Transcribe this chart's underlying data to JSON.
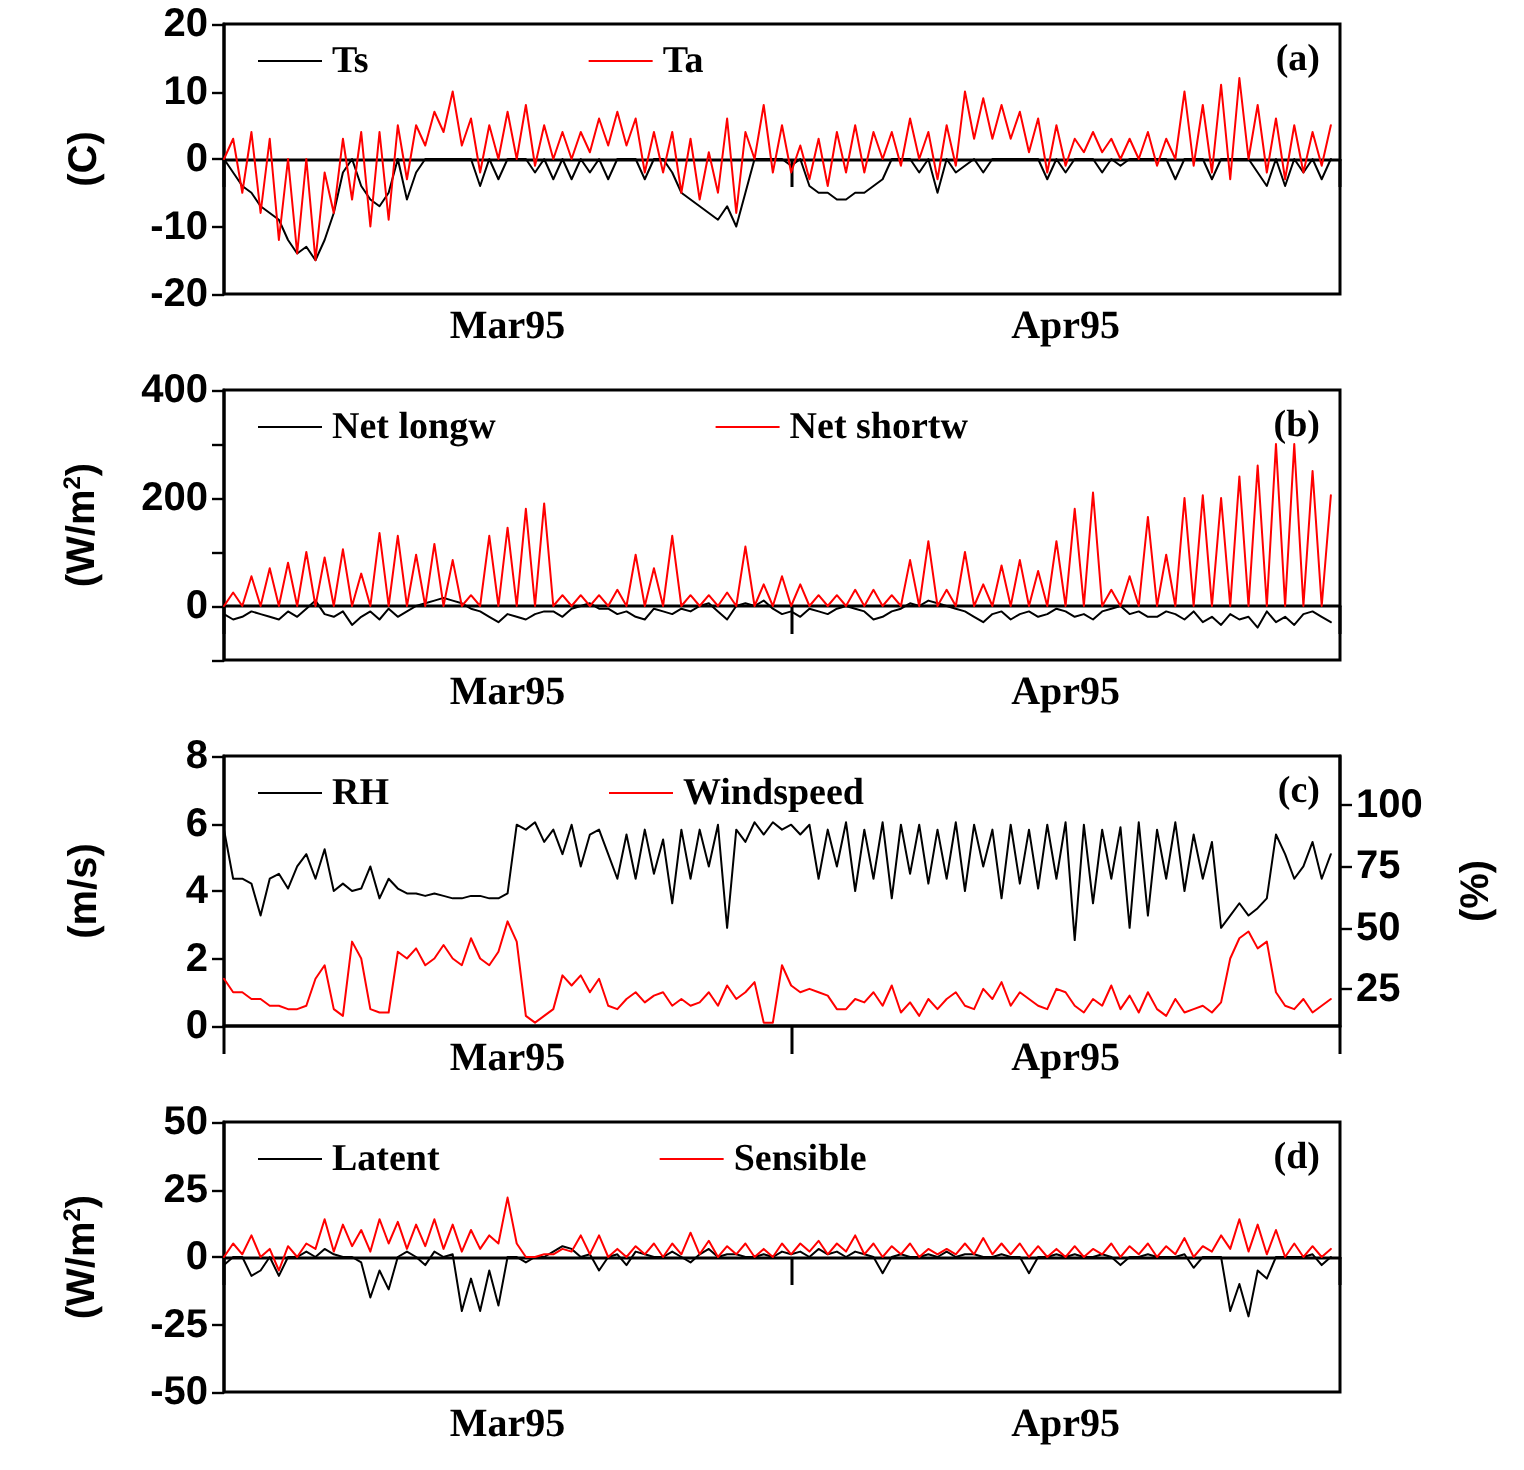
{
  "chart_data": [
    {
      "type": "line",
      "ylabel": "(C)",
      "annotations": [
        "(a)"
      ],
      "legend": "top left",
      "xlim": [
        "1995-03-01",
        "1995-05-01"
      ],
      "xticks": [
        {
          "value": "1995-03-01",
          "label": null
        },
        {
          "value": "1995-03-16T12:00",
          "label": "Mar95"
        },
        {
          "value": "1995-04-01",
          "label": null
        },
        {
          "value": "1995-04-16",
          "label": "Apr95"
        },
        {
          "value": "1995-05-01",
          "label": null
        }
      ],
      "ylim": [
        -20,
        20
      ],
      "yticks": [
        -20,
        -10,
        0,
        10,
        20
      ],
      "x": [
        "1995-03-01T00:00",
        "1995-03-01T12:00",
        "1995-03-02T00:00",
        "1995-03-02T12:00",
        "1995-03-03T00:00",
        "1995-03-03T12:00",
        "1995-03-04T00:00",
        "1995-03-04T12:00",
        "1995-03-05T00:00",
        "1995-03-05T12:00",
        "1995-03-06T00:00",
        "1995-03-06T12:00",
        "1995-03-07T00:00",
        "1995-03-07T12:00",
        "1995-03-08T00:00",
        "1995-03-08T12:00",
        "1995-03-09T00:00",
        "1995-03-09T12:00",
        "1995-03-10T00:00",
        "1995-03-10T12:00",
        "1995-03-11T00:00",
        "1995-03-11T12:00",
        "1995-03-12T00:00",
        "1995-03-12T12:00",
        "1995-03-13T00:00",
        "1995-03-13T12:00",
        "1995-03-14T00:00",
        "1995-03-14T12:00",
        "1995-03-15T00:00",
        "1995-03-15T12:00",
        "1995-03-16T00:00",
        "1995-03-16T12:00",
        "1995-03-17T00:00",
        "1995-03-17T12:00",
        "1995-03-18T00:00",
        "1995-03-18T12:00",
        "1995-03-19T00:00",
        "1995-03-19T12:00",
        "1995-03-20T00:00",
        "1995-03-20T12:00",
        "1995-03-21T00:00",
        "1995-03-21T12:00",
        "1995-03-22T00:00",
        "1995-03-22T12:00",
        "1995-03-23T00:00",
        "1995-03-23T12:00",
        "1995-03-24T00:00",
        "1995-03-24T12:00",
        "1995-03-25T00:00",
        "1995-03-25T12:00",
        "1995-03-26T00:00",
        "1995-03-26T12:00",
        "1995-03-27T00:00",
        "1995-03-27T12:00",
        "1995-03-28T00:00",
        "1995-03-28T12:00",
        "1995-03-29T00:00",
        "1995-03-29T12:00",
        "1995-03-30T00:00",
        "1995-03-30T12:00",
        "1995-03-31T00:00",
        "1995-03-31T12:00",
        "1995-04-01T00:00",
        "1995-04-01T12:00",
        "1995-04-02T00:00",
        "1995-04-02T12:00",
        "1995-04-03T00:00",
        "1995-04-03T12:00",
        "1995-04-04T00:00",
        "1995-04-04T12:00",
        "1995-04-05T00:00",
        "1995-04-05T12:00",
        "1995-04-06T00:00",
        "1995-04-06T12:00",
        "1995-04-07T00:00",
        "1995-04-07T12:00",
        "1995-04-08T00:00",
        "1995-04-08T12:00",
        "1995-04-09T00:00",
        "1995-04-09T12:00",
        "1995-04-10T00:00",
        "1995-04-10T12:00",
        "1995-04-11T00:00",
        "1995-04-11T12:00",
        "1995-04-12T00:00",
        "1995-04-12T12:00",
        "1995-04-13T00:00",
        "1995-04-13T12:00",
        "1995-04-14T00:00",
        "1995-04-14T12:00",
        "1995-04-15T00:00",
        "1995-04-15T12:00",
        "1995-04-16T00:00",
        "1995-04-16T12:00",
        "1995-04-17T00:00",
        "1995-04-17T12:00",
        "1995-04-18T00:00",
        "1995-04-18T12:00",
        "1995-04-19T00:00",
        "1995-04-19T12:00",
        "1995-04-20T00:00",
        "1995-04-20T12:00",
        "1995-04-21T00:00",
        "1995-04-21T12:00",
        "1995-04-22T00:00",
        "1995-04-22T12:00",
        "1995-04-23T00:00",
        "1995-04-23T12:00",
        "1995-04-24T00:00",
        "1995-04-24T12:00",
        "1995-04-25T00:00",
        "1995-04-25T12:00",
        "1995-04-26T00:00",
        "1995-04-26T12:00",
        "1995-04-27T00:00",
        "1995-04-27T12:00",
        "1995-04-28T00:00",
        "1995-04-28T12:00",
        "1995-04-29T00:00",
        "1995-04-29T12:00",
        "1995-04-30T00:00",
        "1995-04-30T12:00"
      ],
      "series": [
        {
          "name": "Ts",
          "color": "#000000",
          "values": [
            0,
            -2,
            -4,
            -5,
            -7,
            -8,
            -9,
            -12,
            -14,
            -13,
            -15,
            -12,
            -8,
            -2,
            0,
            -4,
            -6,
            -7,
            -5,
            0,
            -6,
            -2,
            0,
            0,
            0,
            0,
            0,
            0,
            -4,
            0,
            -3,
            0,
            0,
            0,
            -2,
            0,
            -3,
            0,
            -3,
            0,
            -2,
            0,
            -3,
            0,
            0,
            0,
            -3,
            0,
            0,
            -2,
            -5,
            -6,
            -7,
            -8,
            -9,
            -7,
            -10,
            -5,
            0,
            0,
            0,
            0,
            -1,
            0,
            -4,
            -5,
            -5,
            -6,
            -6,
            -5,
            -5,
            -4,
            -3,
            0,
            0,
            0,
            -2,
            0,
            -5,
            0,
            -2,
            -1,
            0,
            -2,
            0,
            0,
            0,
            0,
            0,
            0,
            -3,
            0,
            -2,
            0,
            0,
            0,
            -2,
            0,
            -1,
            0,
            0,
            0,
            0,
            0,
            -3,
            0,
            0,
            0,
            -3,
            0,
            0,
            0,
            0,
            -2,
            -4,
            0,
            -4,
            0,
            -2,
            0,
            -3,
            0
          ]
        },
        {
          "name": "Ta",
          "color": "#ff0000",
          "values": [
            0,
            3,
            -5,
            4,
            -8,
            3,
            -12,
            0,
            -14,
            0,
            -15,
            -2,
            -8,
            3,
            -6,
            4,
            -10,
            4,
            -9,
            5,
            -3,
            5,
            2,
            7,
            4,
            10,
            2,
            6,
            -2,
            5,
            0,
            7,
            0,
            8,
            -1,
            5,
            0,
            4,
            0,
            4,
            1,
            6,
            2,
            7,
            2,
            6,
            -2,
            4,
            -2,
            4,
            -5,
            3,
            -6,
            1,
            -5,
            6,
            -8,
            4,
            0,
            8,
            -2,
            5,
            -2,
            2,
            -3,
            3,
            -4,
            4,
            -2,
            5,
            -2,
            4,
            0,
            4,
            -1,
            6,
            0,
            4,
            -3,
            5,
            -1,
            10,
            3,
            9,
            3,
            8,
            3,
            7,
            1,
            6,
            -2,
            5,
            -1,
            3,
            1,
            4,
            1,
            3,
            0,
            3,
            0,
            4,
            -1,
            3,
            0,
            10,
            -1,
            8,
            -2,
            11,
            -3,
            12,
            0,
            8,
            -2,
            6,
            -3,
            5,
            -2,
            4,
            -1,
            5
          ]
        }
      ]
    },
    {
      "type": "line",
      "ylabel": "(W/m$^{2}$)",
      "annotations": [
        "(b)"
      ],
      "legend": "top left",
      "xlim": [
        "1995-03-01",
        "1995-05-01"
      ],
      "xticks": [
        {
          "value": "1995-03-01",
          "label": null
        },
        {
          "value": "1995-03-16T12:00",
          "label": "Mar95"
        },
        {
          "value": "1995-04-01",
          "label": null
        },
        {
          "value": "1995-04-16",
          "label": "Apr95"
        },
        {
          "value": "1995-05-01",
          "label": null
        }
      ],
      "ylim": [
        -100,
        400
      ],
      "yticks": [
        {
          "value": -100,
          "label": null
        },
        0,
        {
          "value": 100,
          "label": null
        },
        200,
        {
          "value": 300,
          "label": null
        },
        400
      ],
      "x": [
        "1995-03-01T00:00",
        "1995-03-01T12:00",
        "1995-03-02T00:00",
        "1995-03-02T12:00",
        "1995-03-03T00:00",
        "1995-03-03T12:00",
        "1995-03-04T00:00",
        "1995-03-04T12:00",
        "1995-03-05T00:00",
        "1995-03-05T12:00",
        "1995-03-06T00:00",
        "1995-03-06T12:00",
        "1995-03-07T00:00",
        "1995-03-07T12:00",
        "1995-03-08T00:00",
        "1995-03-08T12:00",
        "1995-03-09T00:00",
        "1995-03-09T12:00",
        "1995-03-10T00:00",
        "1995-03-10T12:00",
        "1995-03-11T00:00",
        "1995-03-11T12:00",
        "1995-03-12T00:00",
        "1995-03-12T12:00",
        "1995-03-13T00:00",
        "1995-03-13T12:00",
        "1995-03-14T00:00",
        "1995-03-14T12:00",
        "1995-03-15T00:00",
        "1995-03-15T12:00",
        "1995-03-16T00:00",
        "1995-03-16T12:00",
        "1995-03-17T00:00",
        "1995-03-17T12:00",
        "1995-03-18T00:00",
        "1995-03-18T12:00",
        "1995-03-19T00:00",
        "1995-03-19T12:00",
        "1995-03-20T00:00",
        "1995-03-20T12:00",
        "1995-03-21T00:00",
        "1995-03-21T12:00",
        "1995-03-22T00:00",
        "1995-03-22T12:00",
        "1995-03-23T00:00",
        "1995-03-23T12:00",
        "1995-03-24T00:00",
        "1995-03-24T12:00",
        "1995-03-25T00:00",
        "1995-03-25T12:00",
        "1995-03-26T00:00",
        "1995-03-26T12:00",
        "1995-03-27T00:00",
        "1995-03-27T12:00",
        "1995-03-28T00:00",
        "1995-03-28T12:00",
        "1995-03-29T00:00",
        "1995-03-29T12:00",
        "1995-03-30T00:00",
        "1995-03-30T12:00",
        "1995-03-31T00:00",
        "1995-03-31T12:00",
        "1995-04-01T00:00",
        "1995-04-01T12:00",
        "1995-04-02T00:00",
        "1995-04-02T12:00",
        "1995-04-03T00:00",
        "1995-04-03T12:00",
        "1995-04-04T00:00",
        "1995-04-04T12:00",
        "1995-04-05T00:00",
        "1995-04-05T12:00",
        "1995-04-06T00:00",
        "1995-04-06T12:00",
        "1995-04-07T00:00",
        "1995-04-07T12:00",
        "1995-04-08T00:00",
        "1995-04-08T12:00",
        "1995-04-09T00:00",
        "1995-04-09T12:00",
        "1995-04-10T00:00",
        "1995-04-10T12:00",
        "1995-04-11T00:00",
        "1995-04-11T12:00",
        "1995-04-12T00:00",
        "1995-04-12T12:00",
        "1995-04-13T00:00",
        "1995-04-13T12:00",
        "1995-04-14T00:00",
        "1995-04-14T12:00",
        "1995-04-15T00:00",
        "1995-04-15T12:00",
        "1995-04-16T00:00",
        "1995-04-16T12:00",
        "1995-04-17T00:00",
        "1995-04-17T12:00",
        "1995-04-18T00:00",
        "1995-04-18T12:00",
        "1995-04-19T00:00",
        "1995-04-19T12:00",
        "1995-04-20T00:00",
        "1995-04-20T12:00",
        "1995-04-21T00:00",
        "1995-04-21T12:00",
        "1995-04-22T00:00",
        "1995-04-22T12:00",
        "1995-04-23T00:00",
        "1995-04-23T12:00",
        "1995-04-24T00:00",
        "1995-04-24T12:00",
        "1995-04-25T00:00",
        "1995-04-25T12:00",
        "1995-04-26T00:00",
        "1995-04-26T12:00",
        "1995-04-27T00:00",
        "1995-04-27T12:00",
        "1995-04-28T00:00",
        "1995-04-28T12:00",
        "1995-04-29T00:00",
        "1995-04-29T12:00",
        "1995-04-30T00:00",
        "1995-04-30T12:00"
      ],
      "series": [
        {
          "name": "Net longw",
          "color": "#000000",
          "values": [
            -15,
            -25,
            -20,
            -10,
            -15,
            -20,
            -25,
            -10,
            -20,
            -5,
            10,
            -15,
            -20,
            -10,
            -35,
            -20,
            -10,
            -25,
            -5,
            -20,
            -10,
            0,
            5,
            10,
            15,
            10,
            5,
            -5,
            -10,
            -20,
            -30,
            -15,
            -20,
            -25,
            -15,
            -10,
            -10,
            -20,
            -5,
            0,
            5,
            -5,
            -5,
            -15,
            -10,
            -20,
            -25,
            -5,
            -10,
            -15,
            -5,
            -10,
            0,
            5,
            -10,
            -25,
            0,
            5,
            0,
            10,
            -5,
            -15,
            -10,
            -20,
            -5,
            -10,
            -15,
            -5,
            0,
            -5,
            -10,
            -25,
            -20,
            -10,
            -5,
            5,
            0,
            10,
            5,
            0,
            -5,
            -10,
            -20,
            -30,
            -15,
            -10,
            -25,
            -15,
            -10,
            -20,
            -15,
            -5,
            -10,
            -20,
            -15,
            -25,
            -10,
            -5,
            0,
            -15,
            -10,
            -20,
            -20,
            -10,
            -15,
            -25,
            -10,
            -30,
            -20,
            -35,
            -15,
            -25,
            -20,
            -40,
            -10,
            -30,
            -20,
            -35,
            -15,
            -10,
            -20,
            -30
          ]
        },
        {
          "name": "Net shortw",
          "color": "#ff0000",
          "values": [
            0,
            25,
            0,
            55,
            0,
            70,
            0,
            80,
            0,
            100,
            0,
            90,
            0,
            105,
            0,
            60,
            0,
            135,
            0,
            130,
            0,
            95,
            0,
            115,
            0,
            85,
            0,
            20,
            0,
            130,
            0,
            145,
            0,
            180,
            0,
            190,
            0,
            20,
            0,
            20,
            0,
            20,
            0,
            30,
            0,
            95,
            0,
            70,
            0,
            130,
            0,
            20,
            0,
            20,
            0,
            25,
            0,
            110,
            0,
            40,
            0,
            55,
            0,
            40,
            0,
            20,
            0,
            20,
            0,
            30,
            0,
            30,
            0,
            20,
            0,
            85,
            0,
            120,
            0,
            30,
            0,
            100,
            0,
            40,
            0,
            75,
            0,
            85,
            0,
            65,
            0,
            120,
            0,
            180,
            0,
            210,
            0,
            30,
            0,
            55,
            0,
            165,
            0,
            95,
            0,
            200,
            0,
            205,
            0,
            200,
            0,
            240,
            0,
            260,
            0,
            300,
            0,
            300,
            0,
            250,
            0,
            205
          ]
        }
      ]
    },
    {
      "type": "line",
      "ylabel": "(m/s)",
      "y2label": "(%)",
      "annotations": [
        "(c)"
      ],
      "legend": "top left",
      "xlim": [
        "1995-03-01",
        "1995-05-01"
      ],
      "xticks": [
        {
          "value": "1995-03-01",
          "label": null
        },
        {
          "value": "1995-03-16T12:00",
          "label": "Mar95"
        },
        {
          "value": "1995-04-01",
          "label": null
        },
        {
          "value": "1995-04-16",
          "label": "Apr95"
        },
        {
          "value": "1995-05-01",
          "label": null
        }
      ],
      "ylim": [
        0,
        8
      ],
      "yticks": [
        0,
        2,
        4,
        6,
        8
      ],
      "y2lim": [
        10,
        120
      ],
      "y2ticks": [
        25,
        50,
        75,
        100
      ],
      "x": [
        "1995-03-01T00:00",
        "1995-03-01T12:00",
        "1995-03-02T00:00",
        "1995-03-02T12:00",
        "1995-03-03T00:00",
        "1995-03-03T12:00",
        "1995-03-04T00:00",
        "1995-03-04T12:00",
        "1995-03-05T00:00",
        "1995-03-05T12:00",
        "1995-03-06T00:00",
        "1995-03-06T12:00",
        "1995-03-07T00:00",
        "1995-03-07T12:00",
        "1995-03-08T00:00",
        "1995-03-08T12:00",
        "1995-03-09T00:00",
        "1995-03-09T12:00",
        "1995-03-10T00:00",
        "1995-03-10T12:00",
        "1995-03-11T00:00",
        "1995-03-11T12:00",
        "1995-03-12T00:00",
        "1995-03-12T12:00",
        "1995-03-13T00:00",
        "1995-03-13T12:00",
        "1995-03-14T00:00",
        "1995-03-14T12:00",
        "1995-03-15T00:00",
        "1995-03-15T12:00",
        "1995-03-16T00:00",
        "1995-03-16T12:00",
        "1995-03-17T00:00",
        "1995-03-17T12:00",
        "1995-03-18T00:00",
        "1995-03-18T12:00",
        "1995-03-19T00:00",
        "1995-03-19T12:00",
        "1995-03-20T00:00",
        "1995-03-20T12:00",
        "1995-03-21T00:00",
        "1995-03-21T12:00",
        "1995-03-22T00:00",
        "1995-03-22T12:00",
        "1995-03-23T00:00",
        "1995-03-23T12:00",
        "1995-03-24T00:00",
        "1995-03-24T12:00",
        "1995-03-25T00:00",
        "1995-03-25T12:00",
        "1995-03-26T00:00",
        "1995-03-26T12:00",
        "1995-03-27T00:00",
        "1995-03-27T12:00",
        "1995-03-28T00:00",
        "1995-03-28T12:00",
        "1995-03-29T00:00",
        "1995-03-29T12:00",
        "1995-03-30T00:00",
        "1995-03-30T12:00",
        "1995-03-31T00:00",
        "1995-03-31T12:00",
        "1995-04-01T00:00",
        "1995-04-01T12:00",
        "1995-04-02T00:00",
        "1995-04-02T12:00",
        "1995-04-03T00:00",
        "1995-04-03T12:00",
        "1995-04-04T00:00",
        "1995-04-04T12:00",
        "1995-04-05T00:00",
        "1995-04-05T12:00",
        "1995-04-06T00:00",
        "1995-04-06T12:00",
        "1995-04-07T00:00",
        "1995-04-07T12:00",
        "1995-04-08T00:00",
        "1995-04-08T12:00",
        "1995-04-09T00:00",
        "1995-04-09T12:00",
        "1995-04-10T00:00",
        "1995-04-10T12:00",
        "1995-04-11T00:00",
        "1995-04-11T12:00",
        "1995-04-12T00:00",
        "1995-04-12T12:00",
        "1995-04-13T00:00",
        "1995-04-13T12:00",
        "1995-04-14T00:00",
        "1995-04-14T12:00",
        "1995-04-15T00:00",
        "1995-04-15T12:00",
        "1995-04-16T00:00",
        "1995-04-16T12:00",
        "1995-04-17T00:00",
        "1995-04-17T12:00",
        "1995-04-18T00:00",
        "1995-04-18T12:00",
        "1995-04-19T00:00",
        "1995-04-19T12:00",
        "1995-04-20T00:00",
        "1995-04-20T12:00",
        "1995-04-21T00:00",
        "1995-04-21T12:00",
        "1995-04-22T00:00",
        "1995-04-22T12:00",
        "1995-04-23T00:00",
        "1995-04-23T12:00",
        "1995-04-24T00:00",
        "1995-04-24T12:00",
        "1995-04-25T00:00",
        "1995-04-25T12:00",
        "1995-04-26T00:00",
        "1995-04-26T12:00",
        "1995-04-27T00:00",
        "1995-04-27T12:00",
        "1995-04-28T00:00",
        "1995-04-28T12:00",
        "1995-04-29T00:00",
        "1995-04-29T12:00",
        "1995-04-30T00:00",
        "1995-04-30T12:00"
      ],
      "series": [
        {
          "name": "RH",
          "color": "#000000",
          "axis": "y2",
          "values": [
            90,
            70,
            70,
            68,
            55,
            70,
            72,
            66,
            75,
            80,
            70,
            82,
            65,
            68,
            65,
            66,
            75,
            62,
            70,
            66,
            64,
            64,
            63,
            64,
            63,
            62,
            62,
            63,
            63,
            62,
            62,
            64,
            92,
            90,
            93,
            85,
            90,
            80,
            92,
            75,
            88,
            90,
            80,
            70,
            88,
            70,
            90,
            72,
            86,
            60,
            90,
            70,
            90,
            75,
            92,
            50,
            90,
            85,
            93,
            88,
            93,
            90,
            92,
            88,
            92,
            70,
            90,
            75,
            93,
            65,
            90,
            70,
            93,
            62,
            92,
            72,
            92,
            68,
            90,
            70,
            93,
            65,
            92,
            75,
            90,
            62,
            92,
            68,
            90,
            66,
            92,
            70,
            93,
            45,
            92,
            60,
            90,
            70,
            91,
            50,
            93,
            55,
            90,
            70,
            93,
            65,
            88,
            70,
            85,
            50,
            55,
            60,
            55,
            58,
            62,
            88,
            80,
            70,
            75,
            85,
            70,
            80
          ]
        },
        {
          "name": "Windspeed",
          "color": "#ff0000",
          "values": [
            1.4,
            1.0,
            1.0,
            0.8,
            0.8,
            0.6,
            0.6,
            0.5,
            0.5,
            0.6,
            1.4,
            1.8,
            0.5,
            0.3,
            2.5,
            2.0,
            0.5,
            0.4,
            0.4,
            2.2,
            2.0,
            2.3,
            1.8,
            2.0,
            2.4,
            2.0,
            1.8,
            2.6,
            2.0,
            1.8,
            2.2,
            3.1,
            2.5,
            0.3,
            0.1,
            0.3,
            0.5,
            1.5,
            1.2,
            1.5,
            1.0,
            1.4,
            0.6,
            0.5,
            0.8,
            1.0,
            0.7,
            0.9,
            1.0,
            0.6,
            0.8,
            0.6,
            0.7,
            1.0,
            0.6,
            1.2,
            0.8,
            1.0,
            1.3,
            0.1,
            0.1,
            1.8,
            1.2,
            1.0,
            1.1,
            1.0,
            0.9,
            0.5,
            0.5,
            0.8,
            0.7,
            1.0,
            0.6,
            1.2,
            0.4,
            0.7,
            0.3,
            0.8,
            0.5,
            0.8,
            1.0,
            0.6,
            0.5,
            1.1,
            0.8,
            1.3,
            0.6,
            1.0,
            0.8,
            0.6,
            0.5,
            1.1,
            1.0,
            0.6,
            0.4,
            0.8,
            0.6,
            1.2,
            0.5,
            0.9,
            0.4,
            1.0,
            0.5,
            0.3,
            0.8,
            0.4,
            0.5,
            0.6,
            0.4,
            0.7,
            2.0,
            2.6,
            2.8,
            2.3,
            2.5,
            1.0,
            0.6,
            0.5,
            0.8,
            0.4,
            0.6,
            0.8
          ]
        }
      ]
    },
    {
      "type": "line",
      "ylabel": "(W/m$^{2}$)",
      "annotations": [
        "(d)"
      ],
      "legend": "top left",
      "xlim": [
        "1995-03-01",
        "1995-05-01"
      ],
      "xticks": [
        {
          "value": "1995-03-01",
          "label": null
        },
        {
          "value": "1995-03-16T12:00",
          "label": "Mar95"
        },
        {
          "value": "1995-04-01",
          "label": null
        },
        {
          "value": "1995-04-16",
          "label": "Apr95"
        },
        {
          "value": "1995-05-01",
          "label": null
        }
      ],
      "ylim": [
        -50,
        50
      ],
      "yticks": [
        -50,
        -25,
        0,
        25,
        50
      ],
      "x": [
        "1995-03-01T00:00",
        "1995-03-01T12:00",
        "1995-03-02T00:00",
        "1995-03-02T12:00",
        "1995-03-03T00:00",
        "1995-03-03T12:00",
        "1995-03-04T00:00",
        "1995-03-04T12:00",
        "1995-03-05T00:00",
        "1995-03-05T12:00",
        "1995-03-06T00:00",
        "1995-03-06T12:00",
        "1995-03-07T00:00",
        "1995-03-07T12:00",
        "1995-03-08T00:00",
        "1995-03-08T12:00",
        "1995-03-09T00:00",
        "1995-03-09T12:00",
        "1995-03-10T00:00",
        "1995-03-10T12:00",
        "1995-03-11T00:00",
        "1995-03-11T12:00",
        "1995-03-12T00:00",
        "1995-03-12T12:00",
        "1995-03-13T00:00",
        "1995-03-13T12:00",
        "1995-03-14T00:00",
        "1995-03-14T12:00",
        "1995-03-15T00:00",
        "1995-03-15T12:00",
        "1995-03-16T00:00",
        "1995-03-16T12:00",
        "1995-03-17T00:00",
        "1995-03-17T12:00",
        "1995-03-18T00:00",
        "1995-03-18T12:00",
        "1995-03-19T00:00",
        "1995-03-19T12:00",
        "1995-03-20T00:00",
        "1995-03-20T12:00",
        "1995-03-21T00:00",
        "1995-03-21T12:00",
        "1995-03-22T00:00",
        "1995-03-22T12:00",
        "1995-03-23T00:00",
        "1995-03-23T12:00",
        "1995-03-24T00:00",
        "1995-03-24T12:00",
        "1995-03-25T00:00",
        "1995-03-25T12:00",
        "1995-03-26T00:00",
        "1995-03-26T12:00",
        "1995-03-27T00:00",
        "1995-03-27T12:00",
        "1995-03-28T00:00",
        "1995-03-28T12:00",
        "1995-03-29T00:00",
        "1995-03-29T12:00",
        "1995-03-30T00:00",
        "1995-03-30T12:00",
        "1995-03-31T00:00",
        "1995-03-31T12:00",
        "1995-04-01T00:00",
        "1995-04-01T12:00",
        "1995-04-02T00:00",
        "1995-04-02T12:00",
        "1995-04-03T00:00",
        "1995-04-03T12:00",
        "1995-04-04T00:00",
        "1995-04-04T12:00",
        "1995-04-05T00:00",
        "1995-04-05T12:00",
        "1995-04-06T00:00",
        "1995-04-06T12:00",
        "1995-04-07T00:00",
        "1995-04-07T12:00",
        "1995-04-08T00:00",
        "1995-04-08T12:00",
        "1995-04-09T00:00",
        "1995-04-09T12:00",
        "1995-04-10T00:00",
        "1995-04-10T12:00",
        "1995-04-11T00:00",
        "1995-04-11T12:00",
        "1995-04-12T00:00",
        "1995-04-12T12:00",
        "1995-04-13T00:00",
        "1995-04-13T12:00",
        "1995-04-14T00:00",
        "1995-04-14T12:00",
        "1995-04-15T00:00",
        "1995-04-15T12:00",
        "1995-04-16T00:00",
        "1995-04-16T12:00",
        "1995-04-17T00:00",
        "1995-04-17T12:00",
        "1995-04-18T00:00",
        "1995-04-18T12:00",
        "1995-04-19T00:00",
        "1995-04-19T12:00",
        "1995-04-20T00:00",
        "1995-04-20T12:00",
        "1995-04-21T00:00",
        "1995-04-21T12:00",
        "1995-04-22T00:00",
        "1995-04-22T12:00",
        "1995-04-23T00:00",
        "1995-04-23T12:00",
        "1995-04-24T00:00",
        "1995-04-24T12:00",
        "1995-04-25T00:00",
        "1995-04-25T12:00",
        "1995-04-26T00:00",
        "1995-04-26T12:00",
        "1995-04-27T00:00",
        "1995-04-27T12:00",
        "1995-04-28T00:00",
        "1995-04-28T12:00",
        "1995-04-29T00:00",
        "1995-04-29T12:00",
        "1995-04-30T00:00",
        "1995-04-30T12:00"
      ],
      "series": [
        {
          "name": "Latent",
          "color": "#000000",
          "values": [
            -3,
            0,
            0,
            -7,
            -5,
            0,
            -7,
            0,
            0,
            2,
            0,
            3,
            1,
            0,
            0,
            -2,
            -15,
            -5,
            -12,
            0,
            2,
            0,
            -3,
            2,
            0,
            1,
            -20,
            -8,
            -20,
            -5,
            -18,
            0,
            0,
            -2,
            0,
            0,
            2,
            4,
            3,
            0,
            1,
            -5,
            0,
            1,
            -3,
            2,
            1,
            0,
            0,
            2,
            0,
            -2,
            1,
            3,
            0,
            1,
            1,
            0,
            0,
            1,
            0,
            2,
            1,
            2,
            0,
            3,
            1,
            2,
            0,
            2,
            1,
            0,
            -6,
            0,
            1,
            0,
            0,
            1,
            0,
            2,
            0,
            1,
            1,
            0,
            0,
            1,
            0,
            0,
            -6,
            0,
            0,
            1,
            0,
            1,
            0,
            0,
            1,
            0,
            -3,
            0,
            0,
            1,
            0,
            0,
            0,
            1,
            -4,
            0,
            0,
            0,
            -20,
            -10,
            -22,
            -5,
            -8,
            0,
            0,
            0,
            0,
            1,
            -3,
            0
          ]
        },
        {
          "name": "Sensible",
          "color": "#ff0000",
          "values": [
            0,
            5,
            1,
            8,
            0,
            3,
            -5,
            4,
            0,
            5,
            3,
            14,
            2,
            12,
            4,
            10,
            2,
            14,
            5,
            13,
            3,
            12,
            4,
            14,
            3,
            12,
            2,
            10,
            3,
            8,
            5,
            22,
            5,
            0,
            0,
            1,
            1,
            3,
            2,
            8,
            1,
            8,
            0,
            3,
            0,
            4,
            1,
            5,
            0,
            5,
            1,
            9,
            1,
            6,
            0,
            4,
            1,
            5,
            0,
            3,
            0,
            5,
            1,
            5,
            2,
            6,
            1,
            5,
            2,
            8,
            1,
            5,
            0,
            4,
            1,
            5,
            0,
            3,
            1,
            3,
            1,
            5,
            1,
            7,
            1,
            5,
            1,
            5,
            0,
            4,
            0,
            3,
            0,
            4,
            0,
            3,
            1,
            5,
            0,
            4,
            1,
            5,
            0,
            4,
            1,
            7,
            0,
            4,
            2,
            8,
            3,
            14,
            2,
            12,
            1,
            10,
            0,
            5,
            0,
            4,
            0,
            3
          ]
        }
      ]
    }
  ]
}
